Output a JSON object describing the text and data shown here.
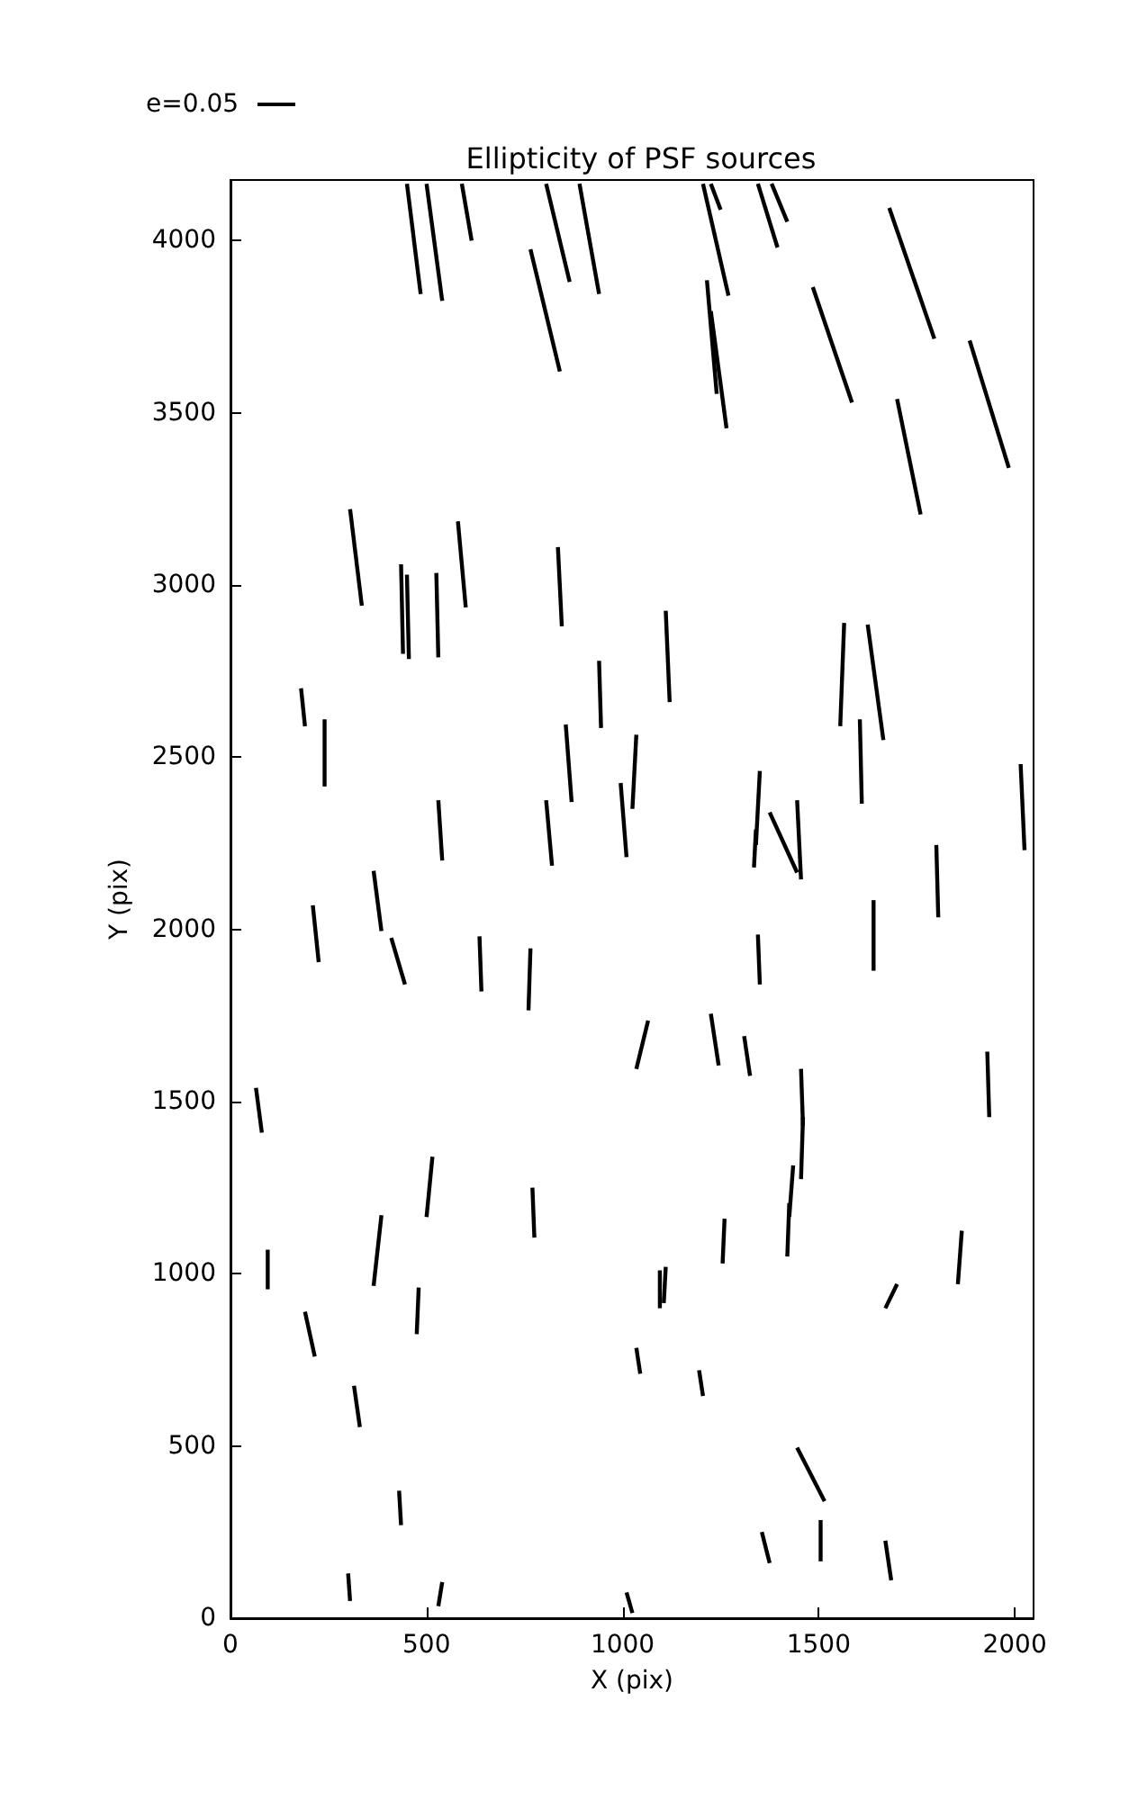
{
  "chart_data": {
    "type": "line",
    "title": "Ellipticity of PSF sources",
    "xlabel": "X (pix)",
    "ylabel": "Y (pix)",
    "annotations": [
      "e=0.05"
    ],
    "marker": "none",
    "line_style": "solid",
    "series": [
      {
        "color": "#000000",
        "x": [
          450,
          485
        ],
        "values": [
          4165,
          3845
        ]
      },
      {
        "color": "#000000",
        "x": [
          500,
          540
        ],
        "values": [
          4165,
          3825
        ]
      },
      {
        "color": "#000000",
        "x": [
          590,
          615
        ],
        "values": [
          4165,
          4000
        ]
      },
      {
        "color": "#000000",
        "x": [
          765,
          840
        ],
        "values": [
          3975,
          3620
        ]
      },
      {
        "color": "#000000",
        "x": [
          805,
          865
        ],
        "values": [
          4165,
          3880
        ]
      },
      {
        "color": "#000000",
        "x": [
          890,
          940
        ],
        "values": [
          4165,
          3845
        ]
      },
      {
        "color": "#000000",
        "x": [
          1205,
          1270
        ],
        "values": [
          4165,
          3840
        ]
      },
      {
        "color": "#000000",
        "x": [
          1225,
          1250
        ],
        "values": [
          4165,
          4090
        ]
      },
      {
        "color": "#000000",
        "x": [
          1345,
          1395
        ],
        "values": [
          4165,
          3980
        ]
      },
      {
        "color": "#000000",
        "x": [
          1380,
          1420
        ],
        "values": [
          4165,
          4055
        ]
      },
      {
        "color": "#000000",
        "x": [
          1680,
          1795
        ],
        "values": [
          4095,
          3715
        ]
      },
      {
        "color": "#000000",
        "x": [
          1485,
          1585
        ],
        "values": [
          3865,
          3530
        ]
      },
      {
        "color": "#000000",
        "x": [
          1885,
          1985
        ],
        "values": [
          3710,
          3340
        ]
      },
      {
        "color": "#000000",
        "x": [
          1700,
          1760
        ],
        "values": [
          3540,
          3205
        ]
      },
      {
        "color": "#000000",
        "x": [
          1215,
          1240
        ],
        "values": [
          3885,
          3555
        ]
      },
      {
        "color": "#000000",
        "x": [
          1225,
          1265
        ],
        "values": [
          3795,
          3455
        ]
      },
      {
        "color": "#000000",
        "x": [
          305,
          335
        ],
        "values": [
          3220,
          2940
        ]
      },
      {
        "color": "#000000",
        "x": [
          435,
          440
        ],
        "values": [
          3060,
          2800
        ]
      },
      {
        "color": "#000000",
        "x": [
          450,
          455
        ],
        "values": [
          3030,
          2785
        ]
      },
      {
        "color": "#000000",
        "x": [
          525,
          530
        ],
        "values": [
          3035,
          2790
        ]
      },
      {
        "color": "#000000",
        "x": [
          580,
          600
        ],
        "values": [
          3185,
          2935
        ]
      },
      {
        "color": "#000000",
        "x": [
          835,
          845
        ],
        "values": [
          3110,
          2880
        ]
      },
      {
        "color": "#000000",
        "x": [
          940,
          945
        ],
        "values": [
          2780,
          2585
        ]
      },
      {
        "color": "#000000",
        "x": [
          1110,
          1120
        ],
        "values": [
          2925,
          2660
        ]
      },
      {
        "color": "#000000",
        "x": [
          1565,
          1555
        ],
        "values": [
          2890,
          2590
        ]
      },
      {
        "color": "#000000",
        "x": [
          1625,
          1665
        ],
        "values": [
          2885,
          2550
        ]
      },
      {
        "color": "#000000",
        "x": [
          180,
          190
        ],
        "values": [
          2700,
          2590
        ]
      },
      {
        "color": "#000000",
        "x": [
          240,
          240
        ],
        "values": [
          2610,
          2415
        ]
      },
      {
        "color": "#000000",
        "x": [
          855,
          870
        ],
        "values": [
          2595,
          2370
        ]
      },
      {
        "color": "#000000",
        "x": [
          1035,
          1025
        ],
        "values": [
          2565,
          2350
        ]
      },
      {
        "color": "#000000",
        "x": [
          995,
          1010
        ],
        "values": [
          2425,
          2210
        ]
      },
      {
        "color": "#000000",
        "x": [
          530,
          540
        ],
        "values": [
          2375,
          2200
        ]
      },
      {
        "color": "#000000",
        "x": [
          805,
          820
        ],
        "values": [
          2375,
          2185
        ]
      },
      {
        "color": "#000000",
        "x": [
          1350,
          1340
        ],
        "values": [
          2460,
          2245
        ]
      },
      {
        "color": "#000000",
        "x": [
          1340,
          1335
        ],
        "values": [
          2290,
          2180
        ]
      },
      {
        "color": "#000000",
        "x": [
          1375,
          1445
        ],
        "values": [
          2340,
          2165
        ]
      },
      {
        "color": "#000000",
        "x": [
          1445,
          1455
        ],
        "values": [
          2375,
          2145
        ]
      },
      {
        "color": "#000000",
        "x": [
          1605,
          1610
        ],
        "values": [
          2610,
          2365
        ]
      },
      {
        "color": "#000000",
        "x": [
          2015,
          2025
        ],
        "values": [
          2480,
          2230
        ]
      },
      {
        "color": "#000000",
        "x": [
          365,
          385
        ],
        "values": [
          2170,
          1995
        ]
      },
      {
        "color": "#000000",
        "x": [
          210,
          225
        ],
        "values": [
          2070,
          1905
        ]
      },
      {
        "color": "#000000",
        "x": [
          1640,
          1640
        ],
        "values": [
          2085,
          1880
        ]
      },
      {
        "color": "#000000",
        "x": [
          1800,
          1805
        ],
        "values": [
          2245,
          2035
        ]
      },
      {
        "color": "#000000",
        "x": [
          410,
          445
        ],
        "values": [
          1975,
          1840
        ]
      },
      {
        "color": "#000000",
        "x": [
          635,
          640
        ],
        "values": [
          1980,
          1820
        ]
      },
      {
        "color": "#000000",
        "x": [
          765,
          760
        ],
        "values": [
          1945,
          1765
        ]
      },
      {
        "color": "#000000",
        "x": [
          1345,
          1350
        ],
        "values": [
          1985,
          1840
        ]
      },
      {
        "color": "#000000",
        "x": [
          1065,
          1035
        ],
        "values": [
          1735,
          1595
        ]
      },
      {
        "color": "#000000",
        "x": [
          1225,
          1245
        ],
        "values": [
          1755,
          1605
        ]
      },
      {
        "color": "#000000",
        "x": [
          1310,
          1325
        ],
        "values": [
          1690,
          1575
        ]
      },
      {
        "color": "#000000",
        "x": [
          1455,
          1460
        ],
        "values": [
          1595,
          1430
        ]
      },
      {
        "color": "#000000",
        "x": [
          1460,
          1455
        ],
        "values": [
          1455,
          1275
        ]
      },
      {
        "color": "#000000",
        "x": [
          1930,
          1935
        ],
        "values": [
          1645,
          1455
        ]
      },
      {
        "color": "#000000",
        "x": [
          65,
          80
        ],
        "values": [
          1540,
          1410
        ]
      },
      {
        "color": "#000000",
        "x": [
          515,
          500
        ],
        "values": [
          1340,
          1165
        ]
      },
      {
        "color": "#000000",
        "x": [
          770,
          775
        ],
        "values": [
          1250,
          1105
        ]
      },
      {
        "color": "#000000",
        "x": [
          1435,
          1425
        ],
        "values": [
          1315,
          1165
        ]
      },
      {
        "color": "#000000",
        "x": [
          1425,
          1420
        ],
        "values": [
          1205,
          1050
        ]
      },
      {
        "color": "#000000",
        "x": [
          1260,
          1255
        ],
        "values": [
          1160,
          1030
        ]
      },
      {
        "color": "#000000",
        "x": [
          1865,
          1855
        ],
        "values": [
          1125,
          970
        ]
      },
      {
        "color": "#000000",
        "x": [
          95,
          95
        ],
        "values": [
          1070,
          955
        ]
      },
      {
        "color": "#000000",
        "x": [
          385,
          365
        ],
        "values": [
          1170,
          965
        ]
      },
      {
        "color": "#000000",
        "x": [
          1110,
          1105
        ],
        "values": [
          1020,
          915
        ]
      },
      {
        "color": "#000000",
        "x": [
          1095,
          1095
        ],
        "values": [
          1010,
          900
        ]
      },
      {
        "color": "#000000",
        "x": [
          1700,
          1670
        ],
        "values": [
          970,
          900
        ]
      },
      {
        "color": "#000000",
        "x": [
          190,
          215
        ],
        "values": [
          890,
          760
        ]
      },
      {
        "color": "#000000",
        "x": [
          480,
          475
        ],
        "values": [
          960,
          825
        ]
      },
      {
        "color": "#000000",
        "x": [
          1035,
          1045
        ],
        "values": [
          785,
          710
        ]
      },
      {
        "color": "#000000",
        "x": [
          1195,
          1205
        ],
        "values": [
          720,
          645
        ]
      },
      {
        "color": "#000000",
        "x": [
          315,
          330
        ],
        "values": [
          675,
          555
        ]
      },
      {
        "color": "#000000",
        "x": [
          1445,
          1515
        ],
        "values": [
          495,
          340
        ]
      },
      {
        "color": "#000000",
        "x": [
          430,
          435
        ],
        "values": [
          370,
          270
        ]
      },
      {
        "color": "#000000",
        "x": [
          1355,
          1375
        ],
        "values": [
          250,
          160
        ]
      },
      {
        "color": "#000000",
        "x": [
          1505,
          1505
        ],
        "values": [
          285,
          165
        ]
      },
      {
        "color": "#000000",
        "x": [
          1670,
          1685
        ],
        "values": [
          225,
          110
        ]
      },
      {
        "color": "#000000",
        "x": [
          300,
          305
        ],
        "values": [
          130,
          50
        ]
      },
      {
        "color": "#000000",
        "x": [
          540,
          530
        ],
        "values": [
          105,
          35
        ]
      },
      {
        "color": "#000000",
        "x": [
          1010,
          1025
        ],
        "values": [
          75,
          15
        ]
      }
    ],
    "xlim": [
      0,
      2048
    ],
    "ylim": [
      0,
      4176
    ],
    "xticks": [
      0,
      500,
      1000,
      1500,
      2000
    ],
    "yticks": [
      0,
      500,
      1000,
      1500,
      2000,
      2500,
      3000,
      3500,
      4000
    ]
  }
}
